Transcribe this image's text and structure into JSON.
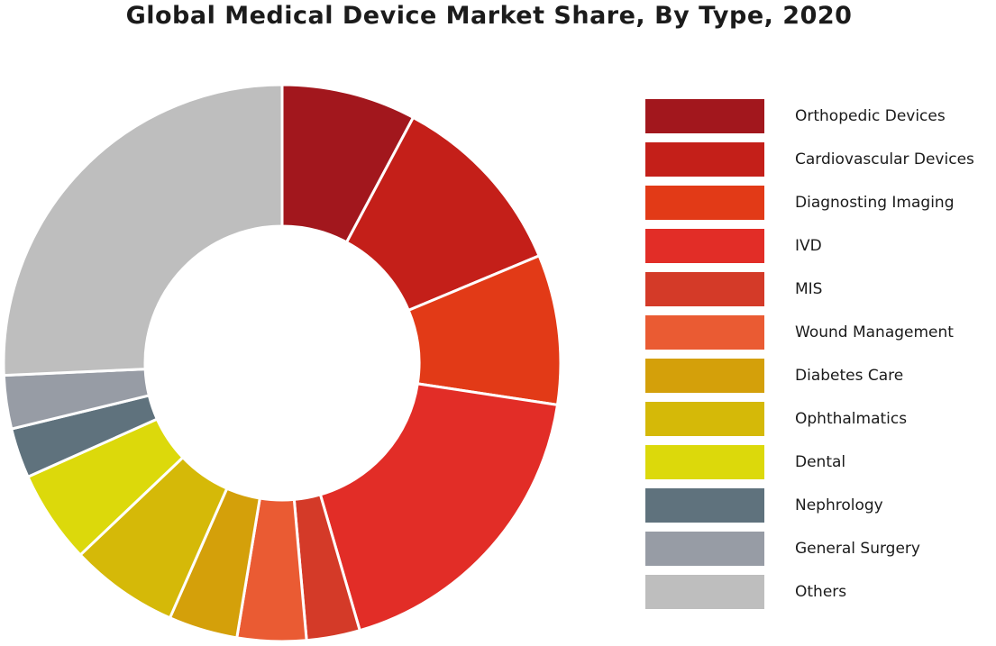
{
  "chart_data": {
    "type": "pie",
    "title": "Global Medical Device Market Share, By Type, 2020",
    "legend_position": "right",
    "series": [
      {
        "name": "Orthopedic Devices",
        "value": 7.8,
        "color": "#a2171d"
      },
      {
        "name": "Cardiovascular Devices",
        "value": 10.9,
        "color": "#c41f19"
      },
      {
        "name": "Diagnosting Imaging",
        "value": 8.7,
        "color": "#e23a17"
      },
      {
        "name": "IVD",
        "value": 18.1,
        "color": "#e22d27"
      },
      {
        "name": "MIS",
        "value": 3.1,
        "color": "#d43a28"
      },
      {
        "name": "Wound Management",
        "value": 4.0,
        "color": "#ea5b33"
      },
      {
        "name": "Diabetes Care",
        "value": 4.0,
        "color": "#d4a00a"
      },
      {
        "name": "Ophthalmatics",
        "value": 6.3,
        "color": "#d5b908"
      },
      {
        "name": "Dental",
        "value": 5.4,
        "color": "#dcd90b"
      },
      {
        "name": "Nephrology",
        "value": 2.9,
        "color": "#5f727d"
      },
      {
        "name": "General Surgery",
        "value": 3.1,
        "color": "#979ca5"
      },
      {
        "name": "Others",
        "value": 25.7,
        "color": "#bebebe"
      }
    ]
  }
}
